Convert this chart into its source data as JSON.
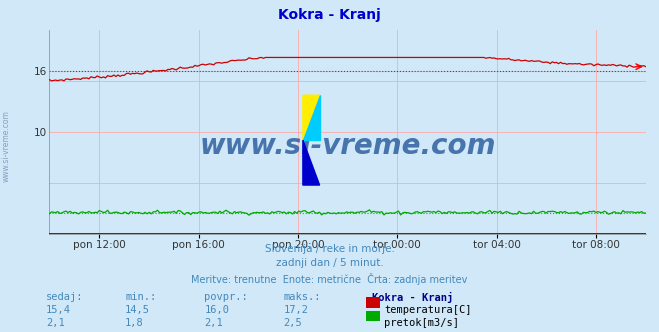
{
  "title": "Kokra - Kranj",
  "title_color": "#0000cc",
  "bg_color": "#d0e8f8",
  "plot_bg_color": "#d0e8f8",
  "x_ticks_labels": [
    "pon 12:00",
    "pon 16:00",
    "pon 20:00",
    "tor 00:00",
    "tor 04:00",
    "tor 08:00"
  ],
  "x_ticks_pos": [
    12,
    16,
    20,
    24,
    28,
    32
  ],
  "xlim": [
    10,
    34
  ],
  "ylim": [
    0,
    20
  ],
  "y_ticks": [
    10,
    16
  ],
  "grid_color": "#ffaaaa",
  "temp_color": "#cc0000",
  "flow_color": "#00aa00",
  "blue_line_color": "#0000cc",
  "watermark_text": "www.si-vreme.com",
  "watermark_color": "#3060a0",
  "logo_yellow": "#ffee00",
  "logo_cyan": "#00ccff",
  "logo_blue": "#0000cc",
  "subtitle1": "Slovenija / reke in morje.",
  "subtitle2": "zadnji dan / 5 minut.",
  "subtitle3": "Meritve: trenutne  Enote: metrične  Črta: zadnja meritev",
  "subtitle_color": "#4488bb",
  "label_left": "www.si-vreme.com",
  "label_left_color": "#7090b0",
  "table_header_color": "#4488bb",
  "table_station_color": "#000088",
  "table_value_color": "#4488bb",
  "temp_min": 14.5,
  "temp_max": 17.2,
  "temp_avg": 16.0,
  "temp_now": 15.4,
  "flow_min": 1.8,
  "flow_max": 2.5,
  "flow_avg": 2.1,
  "flow_now": 2.1
}
